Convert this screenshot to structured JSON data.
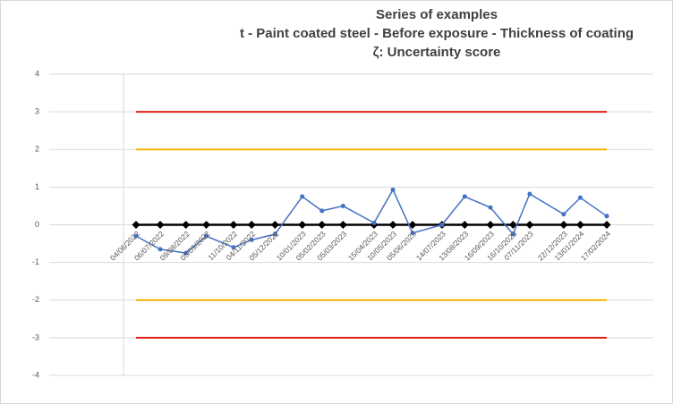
{
  "chart_data": {
    "type": "line",
    "title": "Series of examples",
    "subtitle": "t - Paint coated steel - Before exposure - Thickness of coating",
    "subtitle2": "ζ: Uncertainty score",
    "x": [
      "04/06/2022",
      "06/07/2022",
      "09/08/2022",
      "05/09/2022",
      "11/10/2022",
      "04/11/2022",
      "05/12/2022",
      "10/01/2023",
      "05/02/2023",
      "05/03/2023",
      "15/04/2023",
      "10/05/2023",
      "05/06/2023",
      "14/07/2023",
      "13/08/2023",
      "16/09/2023",
      "16/10/2023",
      "07/11/2023",
      "22/12/2023",
      "13/01/2024",
      "17/02/2024"
    ],
    "series": [
      {
        "color": "#4472c4",
        "marker": "circle",
        "values": [
          -0.3,
          -0.65,
          -0.75,
          -0.3,
          -0.6,
          -0.4,
          -0.25,
          0.75,
          0.37,
          0.5,
          0.05,
          0.93,
          -0.22,
          0,
          0.75,
          0.46,
          -0.25,
          0.82,
          0.28,
          0.72,
          0.23
        ]
      },
      {
        "color": "#000000",
        "marker": "diamond",
        "values": [
          0,
          0,
          0,
          0,
          0,
          0,
          0,
          0,
          0,
          0,
          0,
          0,
          0,
          0,
          0,
          0,
          0,
          0,
          0,
          0,
          0
        ]
      }
    ],
    "reference_lines": [
      {
        "value": 3,
        "color": "#e0201c"
      },
      {
        "value": 2,
        "color": "#f0b400"
      },
      {
        "value": -2,
        "color": "#f0b400"
      },
      {
        "value": -3,
        "color": "#e0201c"
      }
    ],
    "ylim": [
      -4,
      4
    ],
    "yticks": [
      -4,
      -3,
      -2,
      -1,
      0,
      1,
      2,
      3,
      4
    ],
    "grid": true
  }
}
